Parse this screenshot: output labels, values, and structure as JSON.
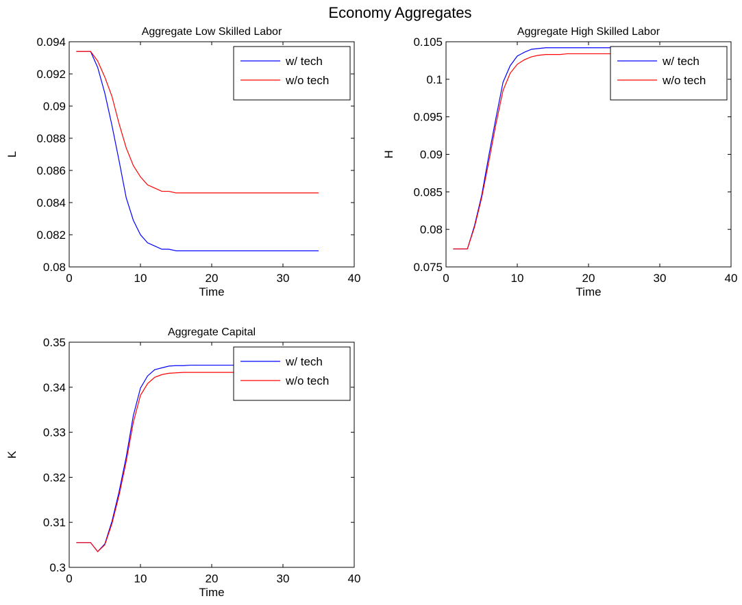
{
  "figure_title": "Economy Aggregates",
  "chart_data": [
    {
      "type": "line",
      "title": "Aggregate Low Skilled Labor",
      "xlabel": "Time",
      "ylabel": "L",
      "xlim": [
        0,
        40
      ],
      "ylim": [
        0.08,
        0.094
      ],
      "xticks": [
        0,
        10,
        20,
        30,
        40
      ],
      "yticks": [
        0.08,
        0.082,
        0.084,
        0.086,
        0.088,
        0.09,
        0.092,
        0.094
      ],
      "ytick_labels": [
        "0.08",
        "0.082",
        "0.084",
        "0.086",
        "0.088",
        "0.09",
        "0.092",
        "0.094"
      ],
      "grid": false,
      "legend": "top-right",
      "series": [
        {
          "name": "w/ tech",
          "color": "#0000ff",
          "x": [
            1,
            2,
            3,
            4,
            5,
            6,
            7,
            8,
            9,
            10,
            11,
            12,
            13,
            14,
            15,
            16,
            17,
            18,
            19,
            20,
            21,
            22,
            23,
            24,
            25,
            26,
            27,
            28,
            29,
            30,
            31,
            32,
            33,
            34,
            35
          ],
          "y": [
            0.0934,
            0.0934,
            0.0934,
            0.0924,
            0.0908,
            0.0888,
            0.0866,
            0.0843,
            0.0829,
            0.082,
            0.0815,
            0.0813,
            0.0811,
            0.0811,
            0.081,
            0.081,
            0.081,
            0.081,
            0.081,
            0.081,
            0.081,
            0.081,
            0.081,
            0.081,
            0.081,
            0.081,
            0.081,
            0.081,
            0.081,
            0.081,
            0.081,
            0.081,
            0.081,
            0.081,
            0.081
          ]
        },
        {
          "name": "w/o tech",
          "color": "#ff0000",
          "x": [
            1,
            2,
            3,
            4,
            5,
            6,
            7,
            8,
            9,
            10,
            11,
            12,
            13,
            14,
            15,
            16,
            17,
            18,
            19,
            20,
            21,
            22,
            23,
            24,
            25,
            26,
            27,
            28,
            29,
            30,
            31,
            32,
            33,
            34,
            35
          ],
          "y": [
            0.0934,
            0.0934,
            0.0934,
            0.0928,
            0.0918,
            0.0906,
            0.0889,
            0.0874,
            0.0863,
            0.0856,
            0.0851,
            0.0849,
            0.0847,
            0.0847,
            0.0846,
            0.0846,
            0.0846,
            0.0846,
            0.0846,
            0.0846,
            0.0846,
            0.0846,
            0.0846,
            0.0846,
            0.0846,
            0.0846,
            0.0846,
            0.0846,
            0.0846,
            0.0846,
            0.0846,
            0.0846,
            0.0846,
            0.0846,
            0.0846
          ]
        }
      ]
    },
    {
      "type": "line",
      "title": "Aggregate High Skilled Labor",
      "xlabel": "Time",
      "ylabel": "H",
      "xlim": [
        0,
        40
      ],
      "ylim": [
        0.075,
        0.105
      ],
      "xticks": [
        0,
        10,
        20,
        30,
        40
      ],
      "yticks": [
        0.075,
        0.08,
        0.085,
        0.09,
        0.095,
        0.1,
        0.105
      ],
      "ytick_labels": [
        "0.075",
        "0.08",
        "0.085",
        "0.09",
        "0.095",
        "0.1",
        "0.105"
      ],
      "grid": false,
      "legend": "top-right",
      "series": [
        {
          "name": "w/ tech",
          "color": "#0000ff",
          "x": [
            1,
            2,
            3,
            4,
            5,
            6,
            7,
            8,
            9,
            10,
            11,
            12,
            13,
            14,
            15,
            16,
            17,
            18,
            19,
            20,
            21,
            22,
            23,
            24,
            25,
            26,
            27,
            28,
            29,
            30,
            31,
            32,
            33,
            34,
            35
          ],
          "y": [
            0.0774,
            0.0774,
            0.0774,
            0.0805,
            0.0845,
            0.0898,
            0.0948,
            0.0996,
            0.1018,
            0.1031,
            0.1036,
            0.104,
            0.1041,
            0.1042,
            0.1042,
            0.1042,
            0.1042,
            0.1042,
            0.1042,
            0.1042,
            0.1042,
            0.1042,
            0.1042,
            0.1042,
            0.1042,
            0.1042,
            0.1042,
            0.1042,
            0.1042,
            0.1042,
            0.1042,
            0.1042,
            0.1042,
            0.1042,
            0.1042
          ]
        },
        {
          "name": "w/o tech",
          "color": "#ff0000",
          "x": [
            1,
            2,
            3,
            4,
            5,
            6,
            7,
            8,
            9,
            10,
            11,
            12,
            13,
            14,
            15,
            16,
            17,
            18,
            19,
            20,
            21,
            22,
            23,
            24,
            25,
            26,
            27,
            28,
            29,
            30,
            31,
            32,
            33,
            34,
            35
          ],
          "y": [
            0.0774,
            0.0774,
            0.0774,
            0.0803,
            0.0842,
            0.089,
            0.094,
            0.0985,
            0.1008,
            0.102,
            0.1026,
            0.103,
            0.1032,
            0.1033,
            0.1033,
            0.1033,
            0.1034,
            0.1034,
            0.1034,
            0.1034,
            0.1034,
            0.1034,
            0.1034,
            0.1034,
            0.1034,
            0.1034,
            0.1034,
            0.1034,
            0.1034,
            0.1034,
            0.1034,
            0.1034,
            0.1034,
            0.1034,
            0.1034
          ]
        }
      ]
    },
    {
      "type": "line",
      "title": "Aggregate Capital",
      "xlabel": "Time",
      "ylabel": "K",
      "xlim": [
        0,
        40
      ],
      "ylim": [
        0.3,
        0.35
      ],
      "xticks": [
        0,
        10,
        20,
        30,
        40
      ],
      "yticks": [
        0.3,
        0.31,
        0.32,
        0.33,
        0.34,
        0.35
      ],
      "ytick_labels": [
        "0.3",
        "0.31",
        "0.32",
        "0.33",
        "0.34",
        "0.35"
      ],
      "grid": false,
      "legend": "top-right",
      "series": [
        {
          "name": "w/ tech",
          "color": "#0000ff",
          "x": [
            1,
            2,
            3,
            4,
            5,
            6,
            7,
            8,
            9,
            10,
            11,
            12,
            13,
            14,
            15,
            16,
            17,
            18,
            19,
            20,
            21,
            22,
            23,
            24,
            25,
            26,
            27,
            28,
            29,
            30,
            31,
            32,
            33,
            34,
            35
          ],
          "y": [
            0.3055,
            0.3055,
            0.3055,
            0.3035,
            0.3052,
            0.3102,
            0.3168,
            0.3245,
            0.3337,
            0.3398,
            0.3425,
            0.3439,
            0.3443,
            0.3447,
            0.3448,
            0.3448,
            0.3449,
            0.3449,
            0.3449,
            0.3449,
            0.3449,
            0.3449,
            0.3449,
            0.3449,
            0.3449,
            0.3449,
            0.3449,
            0.3449,
            0.3449,
            0.3449,
            0.3449,
            0.3449,
            0.3449,
            0.3449,
            0.3449
          ]
        },
        {
          "name": "w/o tech",
          "color": "#ff0000",
          "x": [
            1,
            2,
            3,
            4,
            5,
            6,
            7,
            8,
            9,
            10,
            11,
            12,
            13,
            14,
            15,
            16,
            17,
            18,
            19,
            20,
            21,
            22,
            23,
            24,
            25,
            26,
            27,
            28,
            29,
            30,
            31,
            32,
            33,
            34,
            35
          ],
          "y": [
            0.3055,
            0.3055,
            0.3055,
            0.3035,
            0.305,
            0.3097,
            0.316,
            0.3235,
            0.3322,
            0.3382,
            0.3408,
            0.3422,
            0.3428,
            0.3431,
            0.3432,
            0.3433,
            0.3433,
            0.3433,
            0.3433,
            0.3433,
            0.3433,
            0.3433,
            0.3433,
            0.3433,
            0.3433,
            0.3433,
            0.3433,
            0.3433,
            0.3433,
            0.3433,
            0.3433,
            0.3433,
            0.3433,
            0.3433,
            0.3433
          ]
        }
      ]
    }
  ]
}
